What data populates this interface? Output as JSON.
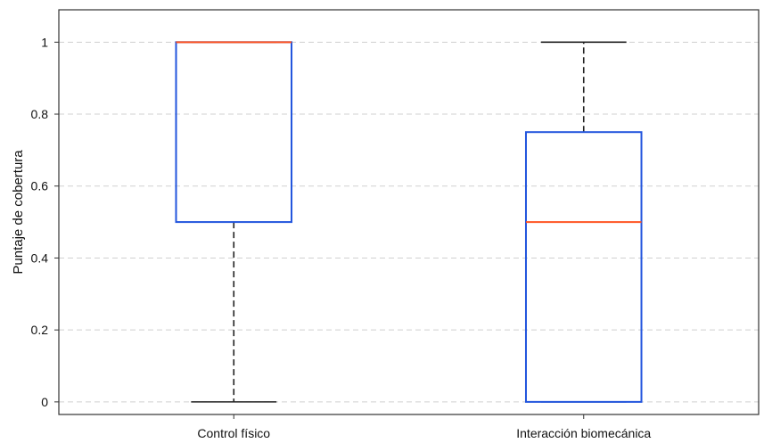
{
  "chart_data": {
    "type": "boxplot",
    "title": "",
    "xlabel": "",
    "ylabel": "Puntaje de cobertura",
    "ylim": [
      -0.035,
      1.09
    ],
    "yticks": [
      0,
      0.2,
      0.4,
      0.6,
      0.8,
      1
    ],
    "ytick_labels": [
      "0",
      "0.2",
      "0.4",
      "0.6",
      "0.8",
      "1"
    ],
    "grid": true,
    "categories": [
      "Control físico",
      "Interacción biomecánica"
    ],
    "boxes": [
      {
        "category": "Control físico",
        "whisker_low": 0,
        "q1": 0.5,
        "median": 1,
        "q3": 1,
        "whisker_high": 1
      },
      {
        "category": "Interacción biomecánica",
        "whisker_low": 0,
        "q1": 0,
        "median": 0.5,
        "q3": 0.75,
        "whisker_high": 1
      }
    ],
    "colors": {
      "box": "#2255dd",
      "median": "#ff5522",
      "whisker": "#222222",
      "grid": "#d0d0d0",
      "frame": "#333333"
    }
  }
}
